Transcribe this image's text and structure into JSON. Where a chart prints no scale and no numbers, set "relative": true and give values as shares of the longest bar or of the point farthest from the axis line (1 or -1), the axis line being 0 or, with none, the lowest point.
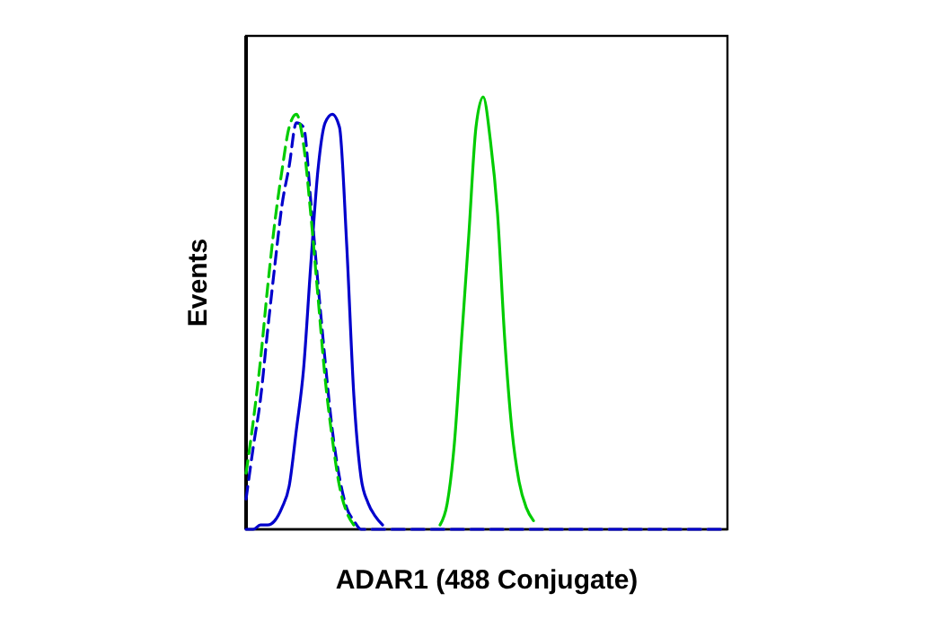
{
  "chart_data": {
    "type": "line",
    "xlabel": "ADAR1 (488 Conjugate)",
    "ylabel": "Events",
    "relative": true,
    "tick_labels": false,
    "categories": [
      null,
      null,
      null,
      null,
      null,
      null,
      null,
      null,
      null,
      null,
      null,
      null,
      null,
      null,
      null,
      null,
      null,
      null,
      null,
      null,
      null,
      null,
      null,
      null,
      null,
      null,
      null,
      null,
      null,
      null,
      null,
      null,
      null,
      null,
      null,
      null,
      null,
      null,
      null,
      null,
      null,
      null,
      null,
      null,
      null,
      null,
      null,
      null,
      null,
      null,
      null,
      null,
      null,
      null,
      null,
      null,
      null,
      null,
      null,
      null,
      null,
      null,
      null,
      null,
      null,
      null,
      null,
      null
    ],
    "series": [
      {
        "color": "#0000cc",
        "line_style": "solid",
        "values": [
          0,
          0,
          0.01,
          0.01,
          0.02,
          0.05,
          0.1,
          0.23,
          0.37,
          0.61,
          0.83,
          0.94,
          0.96,
          0.93,
          0.66,
          0.31,
          0.12,
          0.06,
          0.03,
          0.01,
          null,
          null,
          null,
          null,
          null,
          null,
          null,
          null,
          null,
          null,
          null,
          null,
          null,
          null,
          null,
          null,
          null,
          null,
          null,
          null,
          null,
          null,
          null,
          null,
          null,
          null,
          null,
          null,
          null,
          null,
          null,
          null,
          null,
          null,
          null,
          null,
          null,
          null,
          null,
          null,
          null,
          null,
          null,
          null,
          null,
          null,
          null,
          null
        ]
      },
      {
        "color": "#0000cc",
        "line_style": "dashed",
        "values": [
          0.07,
          0.19,
          0.3,
          0.46,
          0.61,
          0.75,
          0.84,
          0.94,
          0.93,
          0.76,
          0.57,
          0.39,
          0.23,
          0.12,
          0.05,
          0.02,
          0,
          0,
          0,
          0,
          0,
          0,
          0,
          0,
          0,
          0,
          0,
          0,
          0,
          0,
          0,
          0,
          0,
          0,
          0,
          0,
          0,
          0,
          0,
          0,
          0,
          0,
          0,
          0,
          0,
          0,
          0,
          0,
          0,
          0,
          0,
          0,
          0,
          0,
          0,
          0,
          0,
          0,
          0,
          0,
          0,
          0,
          0,
          0,
          0,
          0,
          0,
          0
        ]
      },
      {
        "color": "#00cc00",
        "line_style": "dashed",
        "values": [
          0.13,
          0.25,
          0.39,
          0.56,
          0.71,
          0.83,
          0.93,
          0.96,
          0.89,
          0.73,
          0.54,
          0.35,
          0.21,
          0.1,
          0.04,
          0.01,
          null,
          null,
          null,
          null,
          null,
          null,
          null,
          null,
          null,
          null,
          null,
          null,
          null,
          null,
          null,
          null,
          null,
          null,
          null,
          null,
          null,
          null,
          null,
          null,
          null,
          null,
          null,
          null,
          null,
          null,
          null,
          null,
          null,
          null,
          null,
          null,
          null,
          null,
          null,
          null,
          null,
          null,
          null,
          null,
          null,
          null,
          null,
          null,
          null,
          null,
          null,
          null
        ]
      },
      {
        "color": "#00cc00",
        "line_style": "solid",
        "values": [
          null,
          null,
          null,
          null,
          null,
          null,
          null,
          null,
          null,
          null,
          null,
          null,
          null,
          null,
          null,
          null,
          null,
          null,
          null,
          null,
          null,
          null,
          null,
          null,
          null,
          null,
          null,
          0.01,
          0.06,
          0.2,
          0.44,
          0.68,
          0.93,
          1,
          0.9,
          0.73,
          0.44,
          0.23,
          0.11,
          0.05,
          0.02,
          null,
          null,
          null,
          null,
          null,
          null,
          null,
          null,
          null,
          null,
          null,
          null,
          null,
          null,
          null,
          null,
          null,
          null,
          null,
          null,
          null,
          null,
          null,
          null,
          null,
          null,
          null
        ]
      }
    ]
  }
}
